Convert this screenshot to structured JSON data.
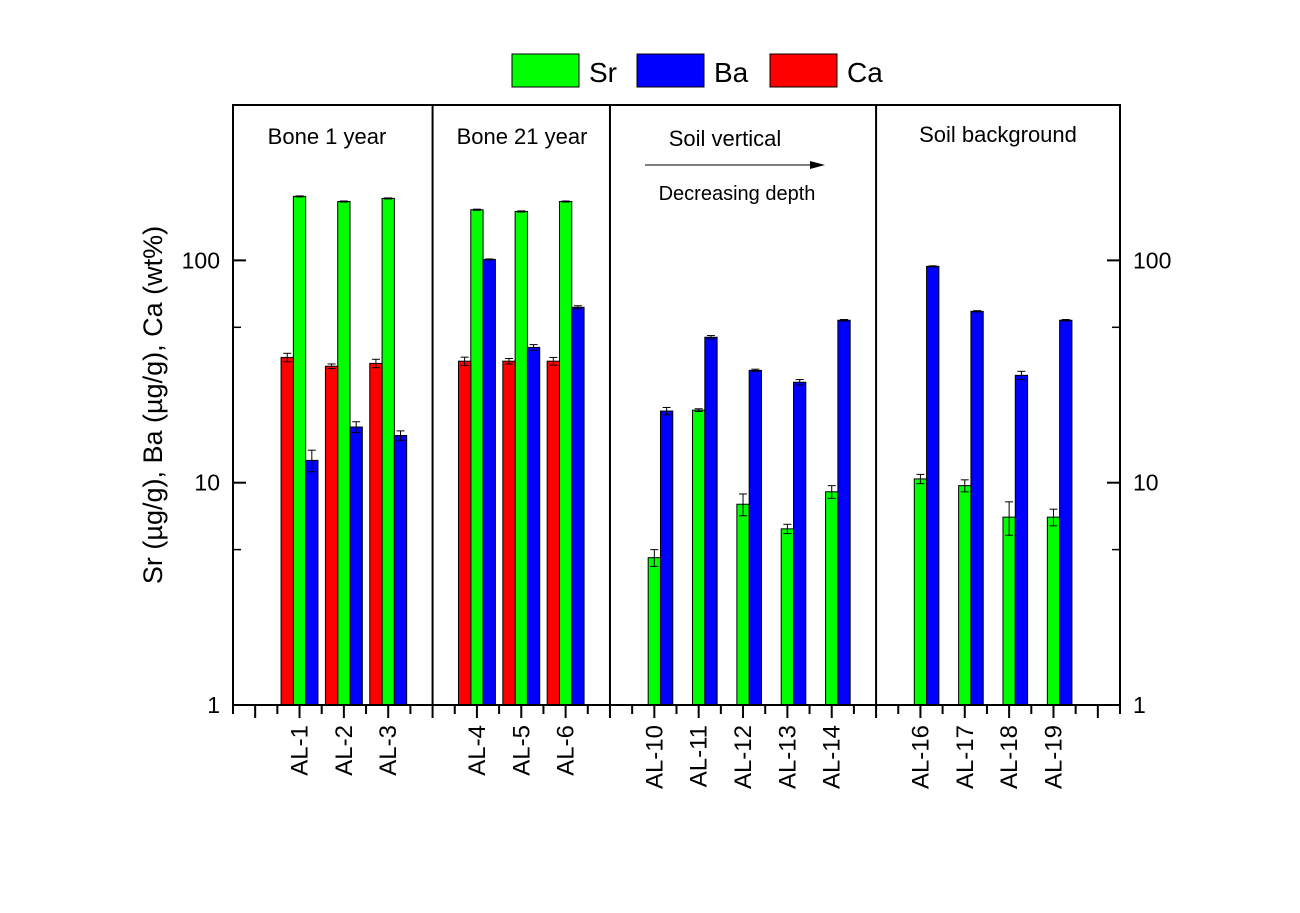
{
  "chart_data": {
    "type": "bar",
    "scale": "log",
    "ylim": [
      1,
      500
    ],
    "ylabel": "Sr (µg/g), Ba (µg/g), Ca (wt%)",
    "yticks": [
      1,
      10,
      100
    ],
    "yticklabels": [
      "1",
      "10",
      "100"
    ],
    "grid": false,
    "legend_position": "top-center",
    "categories": [
      "AL-1",
      "AL-2",
      "AL-3",
      "AL-4",
      "AL-5",
      "AL-6",
      "AL-10",
      "AL-11",
      "AL-12",
      "AL-13",
      "AL-14",
      "AL-16",
      "AL-17",
      "AL-18",
      "AL-19"
    ],
    "series": [
      {
        "name": "Sr",
        "color": "#00ff00",
        "values": [
          194,
          184,
          190,
          169,
          166,
          184,
          4.6,
          21.2,
          8.0,
          6.2,
          9.1,
          10.4,
          9.7,
          7.0,
          7.0
        ],
        "errors": [
          1,
          1,
          1,
          1,
          1,
          1,
          0.4,
          0.3,
          0.9,
          0.3,
          0.6,
          0.5,
          0.6,
          1.2,
          0.6
        ]
      },
      {
        "name": "Ba",
        "color": "#0000ff",
        "values": [
          12.6,
          17.8,
          16.3,
          101,
          40.6,
          61.5,
          21.0,
          45.1,
          32.0,
          28.3,
          53.8,
          94,
          59,
          30.4,
          53.8
        ],
        "errors": [
          1.4,
          1.0,
          0.8,
          0.5,
          1.2,
          1.0,
          0.8,
          0.8,
          0.4,
          0.8,
          0.4,
          0.5,
          0.4,
          1.3,
          0.4
        ]
      },
      {
        "name": "Ca",
        "color": "#ff0000",
        "values": [
          36.6,
          33.4,
          34.4,
          35.2,
          35.2,
          35.2,
          null,
          null,
          null,
          null,
          null,
          null,
          null,
          null,
          null
        ],
        "errors": [
          1.6,
          0.8,
          1.5,
          1.5,
          1,
          1.4,
          null,
          null,
          null,
          null,
          null,
          null,
          null,
          null,
          null
        ]
      }
    ],
    "groups": [
      {
        "label": "Bone 1 year",
        "categories": [
          "AL-1",
          "AL-2",
          "AL-3"
        ]
      },
      {
        "label": "Bone 21 year",
        "categories": [
          "AL-4",
          "AL-5",
          "AL-6"
        ]
      },
      {
        "label": "Soil vertical",
        "categories": [
          "AL-10",
          "AL-11",
          "AL-12",
          "AL-13",
          "AL-14"
        ]
      },
      {
        "label": "Soil background",
        "categories": [
          "AL-16",
          "AL-17",
          "AL-18",
          "AL-19"
        ]
      }
    ],
    "annotations": [
      "Decreasing depth"
    ]
  }
}
